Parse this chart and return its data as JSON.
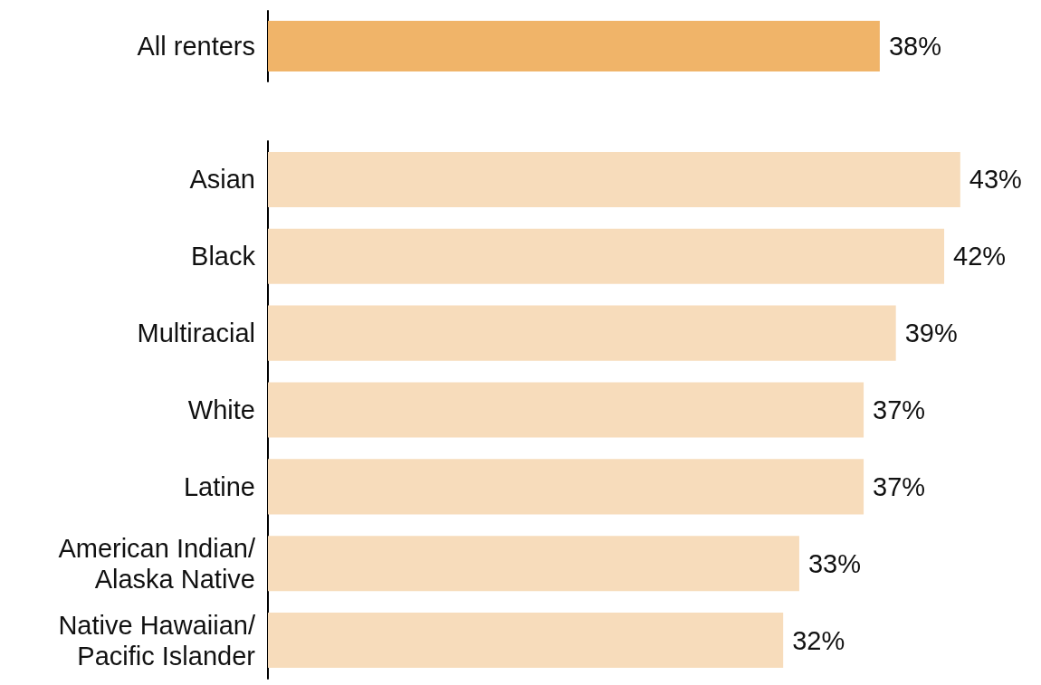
{
  "chart_data": [
    {
      "type": "bar",
      "orientation": "horizontal",
      "categories": [
        "All renters"
      ],
      "values": [
        38
      ],
      "value_labels": [
        "38%"
      ],
      "color": "#f0b469",
      "tick_labels": "y"
    },
    {
      "type": "bar",
      "orientation": "horizontal",
      "categories": [
        "Asian",
        "Black",
        "Multiracial",
        "White",
        "Latine",
        "American Indian/\nAlaska Native",
        "Native Hawaiian/\nPacific Islander"
      ],
      "values": [
        43,
        42,
        39,
        37,
        37,
        33,
        32
      ],
      "value_labels": [
        "43%",
        "42%",
        "39%",
        "37%",
        "37%",
        "33%",
        "32%"
      ],
      "color": "#f7dcbb",
      "tick_labels": "y"
    }
  ]
}
